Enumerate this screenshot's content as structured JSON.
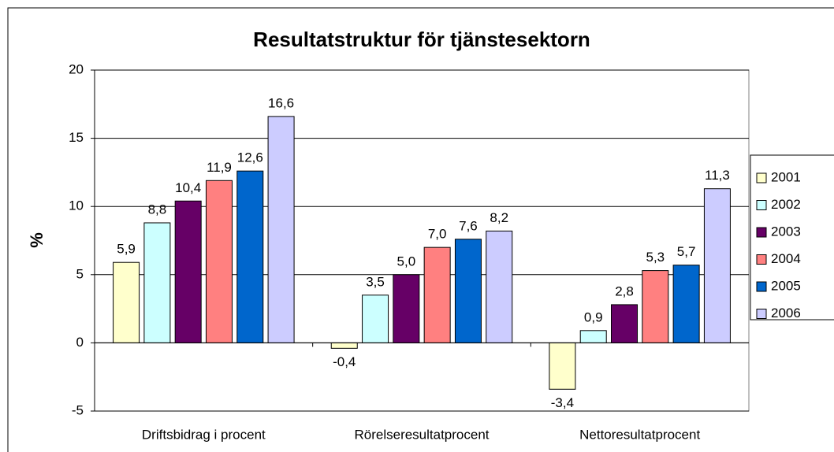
{
  "chart_data": {
    "type": "bar",
    "title": "Resultatstruktur för tjänstesektorn",
    "y_label": "%",
    "categories": [
      "Driftsbidrag i procent",
      "Rörelseresultatprocent",
      "Nettoresultatprocent"
    ],
    "series": [
      {
        "name": "2001",
        "color": "#ffffcc",
        "values": [
          5.9,
          -0.4,
          -3.4
        ],
        "value_labels": [
          "5,9",
          "-0,4",
          "-3,4"
        ]
      },
      {
        "name": "2002",
        "color": "#ccffff",
        "values": [
          8.8,
          3.5,
          0.9
        ],
        "value_labels": [
          "8,8",
          "3,5",
          "0,9"
        ]
      },
      {
        "name": "2003",
        "color": "#660066",
        "values": [
          10.4,
          5.0,
          2.8
        ],
        "value_labels": [
          "10,4",
          "5,0",
          "2,8"
        ]
      },
      {
        "name": "2004",
        "color": "#ff8080",
        "values": [
          11.9,
          7.0,
          5.3
        ],
        "value_labels": [
          "11,9",
          "7,0",
          "5,3"
        ]
      },
      {
        "name": "2005",
        "color": "#0066cc",
        "values": [
          12.6,
          7.6,
          5.7
        ],
        "value_labels": [
          "12,6",
          "7,6",
          "5,7"
        ]
      },
      {
        "name": "2006",
        "color": "#ccccff",
        "values": [
          16.6,
          8.2,
          11.3
        ],
        "value_labels": [
          "16,6",
          "8,2",
          "11,3"
        ]
      }
    ],
    "ylim": [
      -5,
      20
    ],
    "yticks": [
      -5,
      0,
      5,
      10,
      15,
      20
    ],
    "grid": true,
    "legend": "right"
  }
}
